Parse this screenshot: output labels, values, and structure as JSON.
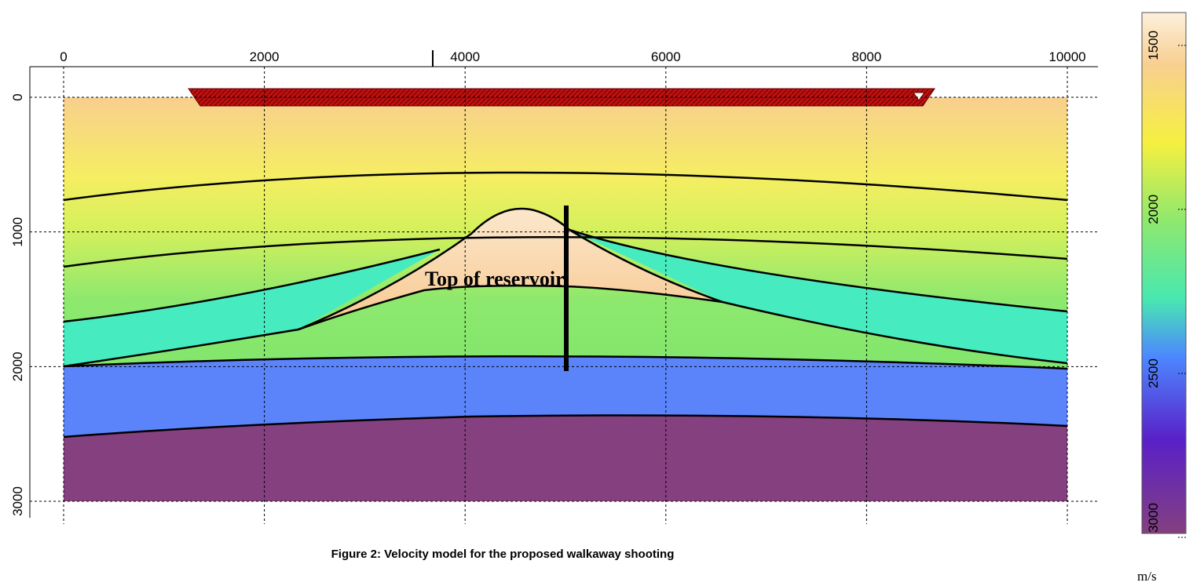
{
  "x_axis": {
    "lim": [
      0,
      10000
    ],
    "ticks": [
      0,
      2000,
      4000,
      6000,
      8000,
      10000
    ]
  },
  "y_axis": {
    "lim": [
      0,
      3000
    ],
    "ticks": [
      0,
      1000,
      2000,
      3000
    ]
  },
  "colorbar": {
    "lim": [
      1400,
      3000
    ],
    "ticks": [
      1500,
      2000,
      2500,
      3000
    ],
    "unit": "m/s"
  },
  "annotation": "Top of reservoir",
  "caption": "Figure 2:   Velocity model for the proposed walkaway shooting"
}
